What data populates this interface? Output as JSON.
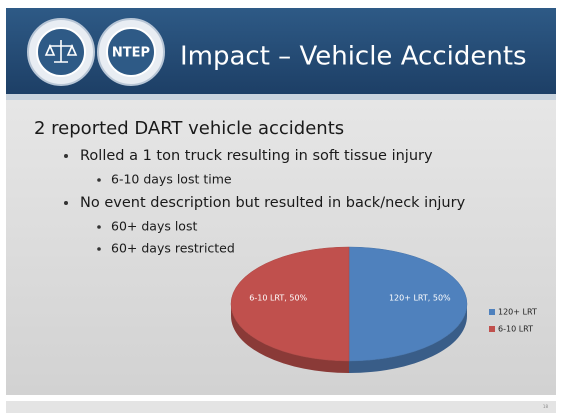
{
  "header": {
    "title": "Impact – Vehicle Accidents",
    "logo_text": "NTEP"
  },
  "body": {
    "heading": "2 reported DART vehicle accidents",
    "items": [
      {
        "text": "Rolled a 1 ton truck resulting in soft tissue injury",
        "sub": [
          "6-10 days lost time"
        ]
      },
      {
        "text": "No  event description but resulted in back/neck injury",
        "sub": [
          "60+ days lost",
          "60+ days restricted"
        ]
      }
    ]
  },
  "page_number": "18",
  "chart_data": {
    "type": "pie",
    "categories": [
      "120+ LRT",
      "6-10 LRT"
    ],
    "values": [
      50,
      50
    ],
    "value_labels": [
      "120+ LRT, 50%",
      "6-10 LRT, 50%"
    ],
    "colors": [
      "#4f81bd",
      "#c0504d"
    ],
    "legend": "right"
  }
}
